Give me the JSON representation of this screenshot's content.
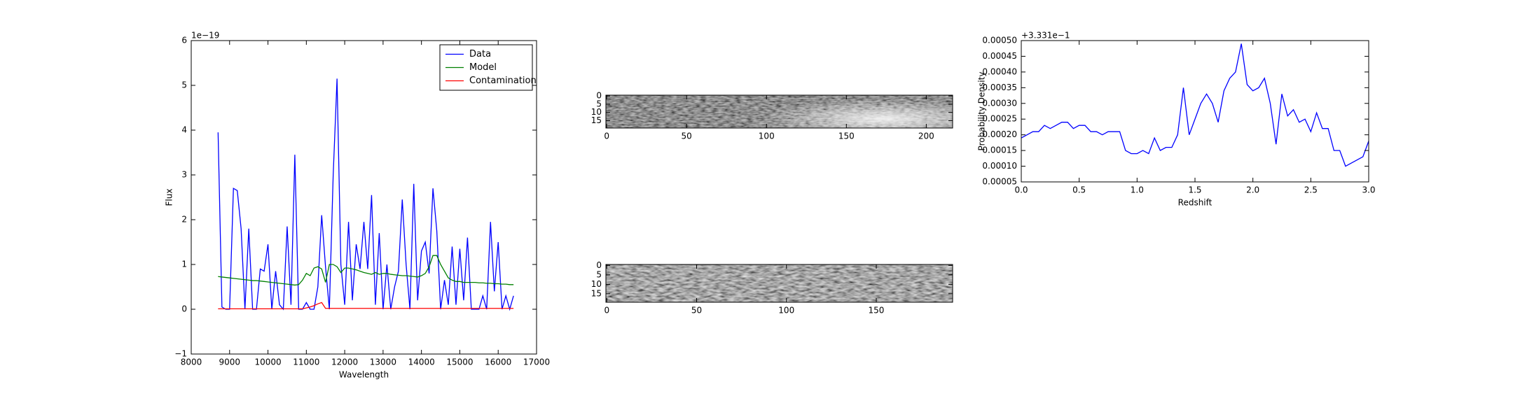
{
  "chart_data": [
    {
      "type": "line",
      "offset_text": "1e−19",
      "xlabel": "Wavelength",
      "ylabel": "Flux",
      "xlim": [
        8000,
        17000
      ],
      "xticks": [
        8000,
        9000,
        10000,
        11000,
        12000,
        13000,
        14000,
        15000,
        16000,
        17000
      ],
      "ylim": [
        -1,
        6
      ],
      "yticks": [
        {
          "value": -1,
          "label": "−1"
        },
        0,
        1,
        2,
        3,
        4,
        5,
        6
      ],
      "legend": "upper right",
      "x": [
        8700,
        8800,
        8900,
        9000,
        9100,
        9200,
        9300,
        9400,
        9500,
        9600,
        9700,
        9800,
        9900,
        10000,
        10100,
        10200,
        10300,
        10400,
        10500,
        10600,
        10700,
        10800,
        10900,
        11000,
        11100,
        11200,
        11300,
        11400,
        11500,
        11600,
        11700,
        11800,
        11900,
        12000,
        12100,
        12200,
        12300,
        12400,
        12500,
        12600,
        12700,
        12800,
        12900,
        13000,
        13100,
        13200,
        13300,
        13400,
        13500,
        13600,
        13700,
        13800,
        13900,
        14000,
        14100,
        14200,
        14300,
        14400,
        14500,
        14600,
        14700,
        14800,
        14900,
        15000,
        15100,
        15200,
        15300,
        15400,
        15500,
        15600,
        15700,
        15800,
        15900,
        16000,
        16100,
        16200,
        16300,
        16400
      ],
      "series": [
        {
          "name": "Data",
          "color": "#0000ff",
          "values": [
            3.95,
            0.05,
            0,
            0,
            2.7,
            2.65,
            1.8,
            0,
            1.8,
            0,
            0,
            0.9,
            0.85,
            1.45,
            0,
            0.85,
            0.1,
            0,
            1.85,
            0.1,
            3.45,
            0,
            0,
            0.15,
            0,
            0,
            0.5,
            2.1,
            0.95,
            0,
            3.0,
            5.15,
            1.0,
            0.1,
            1.95,
            0.2,
            1.45,
            0.9,
            1.95,
            0.9,
            2.55,
            0.1,
            1.7,
            0,
            1.0,
            0,
            0.5,
            0.85,
            2.45,
            1.0,
            0,
            2.8,
            0.2,
            1.3,
            1.5,
            0.8,
            2.7,
            1.75,
            0,
            0.65,
            0.1,
            1.4,
            0.1,
            1.35,
            0.2,
            1.6,
            0,
            0,
            0,
            0.3,
            0,
            1.95,
            0.4,
            1.5,
            0,
            0.3,
            0,
            0.3
          ]
        },
        {
          "name": "Model",
          "color": "#008000",
          "values": [
            0.73,
            0.72,
            0.71,
            0.7,
            0.69,
            0.68,
            0.67,
            0.66,
            0.65,
            0.64,
            0.64,
            0.63,
            0.62,
            0.61,
            0.6,
            0.59,
            0.58,
            0.57,
            0.56,
            0.55,
            0.54,
            0.55,
            0.65,
            0.8,
            0.75,
            0.92,
            0.95,
            0.9,
            0.6,
            1.0,
            1.0,
            0.95,
            0.82,
            0.92,
            0.92,
            0.9,
            0.88,
            0.85,
            0.82,
            0.8,
            0.78,
            0.82,
            0.78,
            0.8,
            0.8,
            0.78,
            0.77,
            0.76,
            0.75,
            0.75,
            0.74,
            0.73,
            0.72,
            0.75,
            0.8,
            0.95,
            1.2,
            1.2,
            1.0,
            0.85,
            0.7,
            0.65,
            0.62,
            0.62,
            0.6,
            0.6,
            0.6,
            0.6,
            0.59,
            0.59,
            0.58,
            0.58,
            0.57,
            0.57,
            0.56,
            0.56,
            0.55,
            0.55
          ]
        },
        {
          "name": "Contamination",
          "color": "#ff0000",
          "values": [
            0.01,
            0.01,
            0.01,
            0.01,
            0.01,
            0.01,
            0.01,
            0.01,
            0.01,
            0.01,
            0.01,
            0.01,
            0.01,
            0.01,
            0.01,
            0.01,
            0.01,
            0.01,
            0.01,
            0.01,
            0.01,
            0.01,
            0.01,
            0.03,
            0.05,
            0.08,
            0.12,
            0.15,
            0.02,
            0.02,
            0.02,
            0.02,
            0.02,
            0.02,
            0.02,
            0.02,
            0.02,
            0.02,
            0.02,
            0.02,
            0.02,
            0.02,
            0.02,
            0.02,
            0.02,
            0.02,
            0.02,
            0.02,
            0.02,
            0.02,
            0.02,
            0.02,
            0.02,
            0.02,
            0.02,
            0.02,
            0.02,
            0.02,
            0.02,
            0.02,
            0.02,
            0.02,
            0.02,
            0.02,
            0.02,
            0.02,
            0.02,
            0.02,
            0.02,
            0.02,
            0.02,
            0.02,
            0.02,
            0.02,
            0.02,
            0.02,
            0.02,
            0.02
          ]
        }
      ]
    },
    {
      "type": "image",
      "xlim": [
        -0.5,
        216.5
      ],
      "xticks": [
        0,
        50,
        100,
        150,
        200
      ],
      "ylim": [
        19.5,
        -0.5
      ],
      "yticks": [
        0,
        5,
        10,
        15
      ]
    },
    {
      "type": "image",
      "xlim": [
        -0.5,
        192.5
      ],
      "xticks": [
        0,
        50,
        100,
        150
      ],
      "ylim": [
        19.5,
        -0.5
      ],
      "yticks": [
        0,
        5,
        10,
        15
      ]
    },
    {
      "type": "line",
      "offset_text": "+3.331e−1",
      "xlabel": "Redshift",
      "ylabel": "Probability Density",
      "xlim": [
        0,
        3
      ],
      "xticks": [
        {
          "value": 0,
          "label": "0.0"
        },
        0.5,
        {
          "value": 1,
          "label": "1.0"
        },
        1.5,
        {
          "value": 2,
          "label": "2.0"
        },
        2.5,
        {
          "value": 3,
          "label": "3.0"
        }
      ],
      "ylim": [
        5e-05,
        0.0005
      ],
      "yticks": [
        5e-05,
        {
          "value": 0.0001,
          "label": "0.00010"
        },
        0.00015,
        {
          "value": 0.0002,
          "label": "0.00020"
        },
        0.00025,
        {
          "value": 0.0003,
          "label": "0.00030"
        },
        0.00035,
        {
          "value": 0.0004,
          "label": "0.00040"
        },
        0.00045,
        {
          "value": 0.0005,
          "label": "0.00050"
        }
      ],
      "x": [
        0,
        0.05,
        0.1,
        0.15,
        0.2,
        0.25,
        0.3,
        0.35,
        0.4,
        0.45,
        0.5,
        0.55,
        0.6,
        0.65,
        0.7,
        0.75,
        0.8,
        0.85,
        0.9,
        0.95,
        1,
        1.05,
        1.1,
        1.15,
        1.2,
        1.25,
        1.3,
        1.35,
        1.4,
        1.45,
        1.5,
        1.55,
        1.6,
        1.65,
        1.7,
        1.75,
        1.8,
        1.85,
        1.9,
        1.95,
        2,
        2.05,
        2.1,
        2.15,
        2.2,
        2.25,
        2.3,
        2.35,
        2.4,
        2.45,
        2.5,
        2.55,
        2.6,
        2.65,
        2.7,
        2.75,
        2.8,
        2.85,
        2.9,
        2.95,
        3
      ],
      "series": [
        {
          "color": "#0000ff",
          "values": [
            0.00019,
            0.0002,
            0.00021,
            0.00021,
            0.00023,
            0.00022,
            0.00023,
            0.00024,
            0.00024,
            0.00022,
            0.00023,
            0.00023,
            0.00021,
            0.00021,
            0.0002,
            0.00021,
            0.00021,
            0.00021,
            0.00015,
            0.00014,
            0.00014,
            0.00015,
            0.00014,
            0.00019,
            0.00015,
            0.00016,
            0.00016,
            0.0002,
            0.00035,
            0.0002,
            0.00025,
            0.0003,
            0.00033,
            0.0003,
            0.00024,
            0.00034,
            0.00038,
            0.0004,
            0.00049,
            0.00036,
            0.00034,
            0.00035,
            0.00038,
            0.0003,
            0.00017,
            0.00033,
            0.00026,
            0.00028,
            0.00024,
            0.00025,
            0.00021,
            0.00027,
            0.00022,
            0.00022,
            0.00015,
            0.00015,
            0.0001,
            0.00011,
            0.00012,
            0.00013,
            0.00018
          ]
        }
      ]
    }
  ]
}
